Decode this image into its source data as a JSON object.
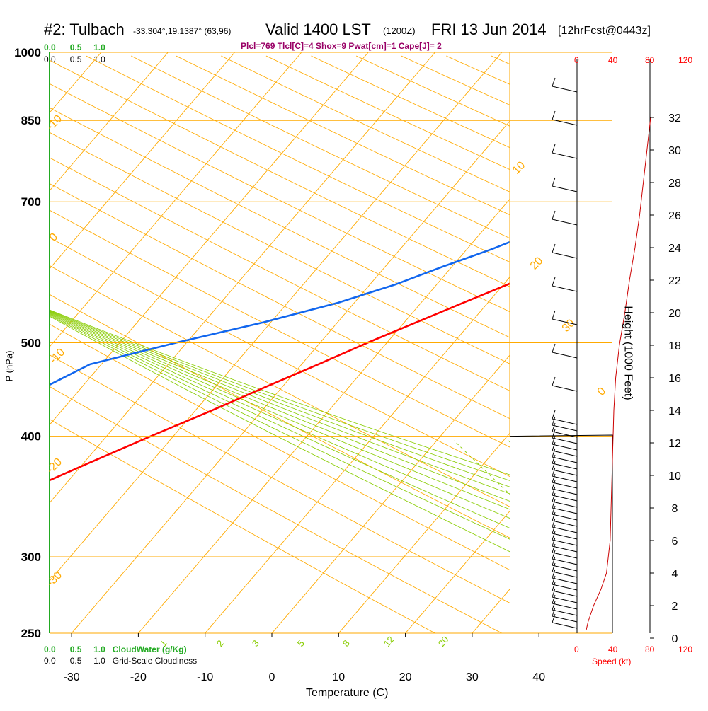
{
  "header": {
    "station": "#2: Tulbach",
    "coords": "-33.304°,19.1387° (63,96)",
    "valid_label": "Valid 1400 LST",
    "valid_z": "(1200Z)",
    "date": "FRI 13 Jun 2014",
    "fcst": "[12hrFcst@0443z]",
    "indices": "Plcl=769 Tlcl[C]=4 Shox=9 Pwat[cm]=1 Cape[J]= 2"
  },
  "top_scales": {
    "cloud_water": [
      "0.0",
      "0.5",
      "1.0"
    ],
    "cloudiness": [
      "0.0",
      "0.5",
      "1.0"
    ]
  },
  "bottom_scales": {
    "cloud_water": [
      "0.0",
      "0.5",
      "1.0"
    ],
    "cloud_water_label": "CloudWater (g/Kg)",
    "cloudiness": [
      "0.0",
      "0.5",
      "1.0"
    ],
    "cloudiness_label": "Grid-Scale Cloudiness"
  },
  "speed_scale": {
    "top_ticks": [
      "0",
      "40",
      "80",
      "120"
    ],
    "bottom_ticks": [
      "0",
      "40",
      "80",
      "120"
    ],
    "label": "Speed (kt)"
  },
  "colors": {
    "isobar": "#ffaa00",
    "isotherm": "#ffaa00",
    "dry_adiabat": "#ffaa00",
    "moist_adiabat": "#88cc00",
    "mixing_ratio": "#88cc00",
    "temperature": "#ff0000",
    "dewpoint": "#1166ee",
    "cloud_axis": "#22aa22",
    "wind_speed": "#cc0000"
  },
  "chart_data": {
    "type": "line",
    "title": "#2: Tulbach",
    "xlabel": "Temperature (C)",
    "ylabel": "P (hPa)",
    "y2label": "Height (1000 Feet)",
    "x_ticks": [
      -30,
      -20,
      -10,
      0,
      10,
      20,
      30,
      40
    ],
    "pressure_ticks": [
      250,
      300,
      400,
      500,
      700,
      850,
      1000
    ],
    "height_ticks": [
      0,
      2,
      4,
      6,
      8,
      10,
      12,
      14,
      16,
      18,
      20,
      22,
      24,
      26,
      28,
      30,
      32
    ],
    "xlim": [
      -35,
      36
    ],
    "ylim": [
      1000,
      250
    ],
    "isotherm_labels": [
      "-10",
      "0",
      "10",
      "20",
      "30",
      "0",
      "-10",
      "-20",
      "-30"
    ],
    "mixing_ratio_labels": [
      "1",
      "2",
      "3",
      "5",
      "8",
      "12",
      "20"
    ],
    "series": [
      {
        "name": "Temperature",
        "pressure_hPa": [
          1000,
          990,
          975,
          950,
          925,
          900,
          875,
          850,
          825,
          800,
          775,
          750,
          725,
          700,
          675,
          650,
          625,
          600,
          575,
          550,
          525,
          500,
          475,
          450,
          425,
          400,
          375,
          350,
          325,
          300,
          275,
          262
        ],
        "temp_C": [
          27.5,
          26.9,
          26.5,
          24.8,
          22.7,
          20.6,
          18.3,
          16.5,
          14.7,
          13.2,
          11.4,
          9.4,
          7.3,
          5.0,
          2.7,
          0.5,
          -1.9,
          -5.5,
          -9.3,
          -13.7,
          -18.2,
          -22.9,
          -27.5,
          -32.5,
          -37.6,
          -43.4,
          -49.3,
          -55.4,
          -60.7,
          -64.6,
          -68.1,
          -70.5
        ]
      },
      {
        "name": "Dewpoint",
        "pressure_hPa": [
          1000,
          990,
          975,
          950,
          925,
          900,
          875,
          850,
          825,
          800,
          775,
          750,
          725,
          700,
          675,
          650,
          625,
          600,
          575,
          550,
          525,
          500,
          475,
          450,
          425,
          400,
          375,
          350,
          325,
          300,
          275,
          262
        ],
        "temp_C": [
          13.3,
          5.0,
          3.2,
          1.3,
          -0.6,
          -2.7,
          -3.1,
          -2.4,
          -2.8,
          -3.8,
          -5.0,
          -6.3,
          -7.5,
          -8.2,
          -9.7,
          -12.2,
          -16.3,
          -21.3,
          -26.1,
          -32.5,
          -41.1,
          -51.6,
          -61.7,
          -65.5,
          -66.0,
          -67.6,
          -70.4,
          -73.6,
          -77.5,
          -81.5,
          -84.0,
          -82.0
        ]
      }
    ],
    "wind_speed_profile": {
      "height_kft": [
        0.5,
        1,
        2,
        3,
        4,
        6,
        8,
        10,
        12,
        14,
        16,
        18,
        20,
        22,
        24,
        26,
        28,
        30,
        32
      ],
      "speed_kt": [
        10,
        12,
        18,
        26,
        32,
        36,
        37,
        38,
        39,
        40,
        42,
        46,
        52,
        57,
        63,
        68,
        72,
        76,
        80
      ]
    }
  }
}
